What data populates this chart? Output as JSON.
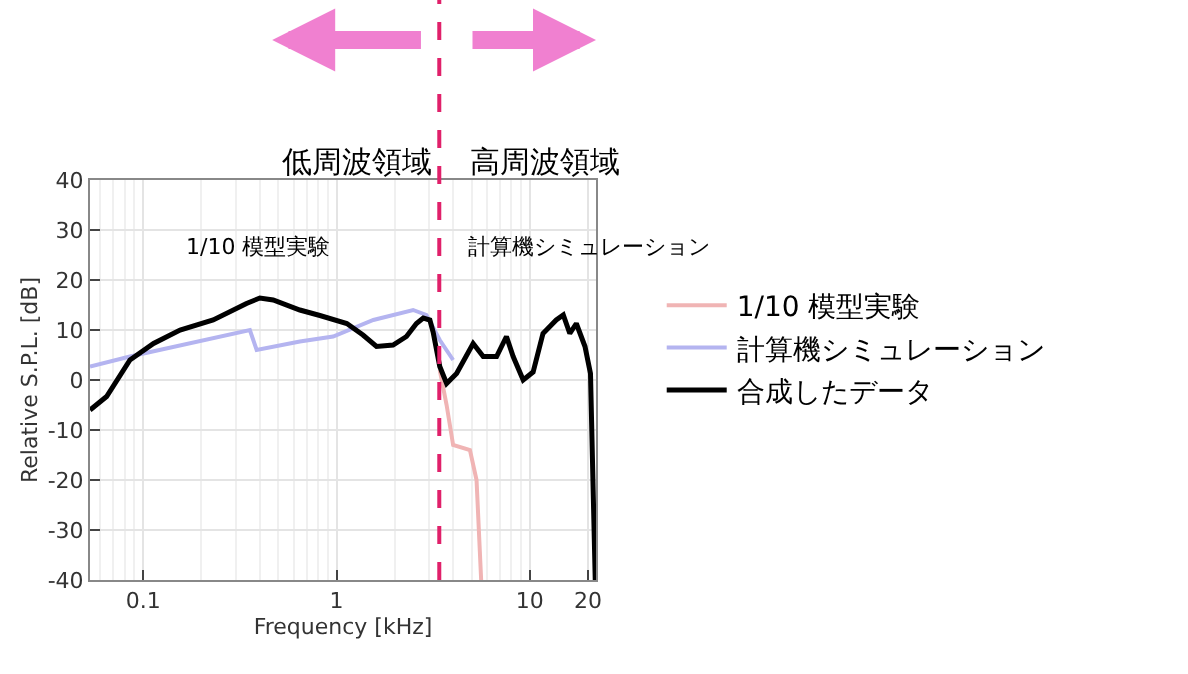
{
  "chart_data": {
    "type": "line",
    "xlabel": "Frequency [kHz]",
    "ylabel": "Relative S.P.L. [dB]",
    "log": "x",
    "xlim": [
      0.053,
      22
    ],
    "xticks": [
      0.1,
      1,
      10,
      20
    ],
    "ylim": [
      -40,
      40
    ],
    "yticks": [
      -40,
      -30,
      -20,
      -10,
      0,
      10,
      20,
      30,
      40
    ],
    "grid": true,
    "legend": "right",
    "series": [
      {
        "name": "1/10 模型実験",
        "color": "#f0b4b4",
        "x": [
          3.42,
          3.71,
          4.01,
          4.9,
          5.3,
          5.6
        ],
        "values": [
          2,
          -5,
          -13,
          -14,
          -20,
          -40
        ]
      },
      {
        "name": "計算機シミュレーション",
        "color": "#b4b4f0",
        "x": [
          0.053,
          0.0853,
          0.356,
          0.386,
          0.646,
          0.96,
          1.55,
          2.49,
          2.92,
          3.42,
          4.01
        ],
        "values": [
          2.7,
          4.7,
          10,
          6,
          7.7,
          8.7,
          12,
          14,
          13,
          8,
          4
        ]
      },
      {
        "name": "合成したデータ",
        "color": "#000000",
        "x": [
          0.053,
          0.0646,
          0.0853,
          0.113,
          0.155,
          0.23,
          0.342,
          0.401,
          0.47,
          0.646,
          0.82,
          1.13,
          1.37,
          1.61,
          1.96,
          2.3,
          2.59,
          2.81,
          3.04,
          3.16,
          3.42,
          3.71,
          4.18,
          5.09,
          5.74,
          6.73,
          7.57,
          8.2,
          9.24,
          10.4,
          11.7,
          13.7,
          14.9,
          16.1,
          17.4,
          19.3,
          20.6,
          21.8
        ],
        "values": [
          -6,
          -3.3,
          4,
          7.3,
          10,
          12,
          15.3,
          16.4,
          16,
          14,
          12.9,
          11.3,
          9,
          6.7,
          7,
          8.7,
          11.3,
          12.4,
          12,
          9.6,
          2.7,
          -0.7,
          1.3,
          7.3,
          4.7,
          4.7,
          8.7,
          4.7,
          0,
          1.6,
          9.3,
          12,
          13,
          9.3,
          11.3,
          6.7,
          1.3,
          -40
        ]
      }
    ],
    "ref_lines": [
      {
        "axis": "x",
        "value": 3.4,
        "color": "#e0206a",
        "line_style": "dashed"
      }
    ],
    "annotations": [
      "低周波領域",
      "高周波領域",
      "1/10 模型実験",
      "計算機シミュレーション"
    ]
  }
}
